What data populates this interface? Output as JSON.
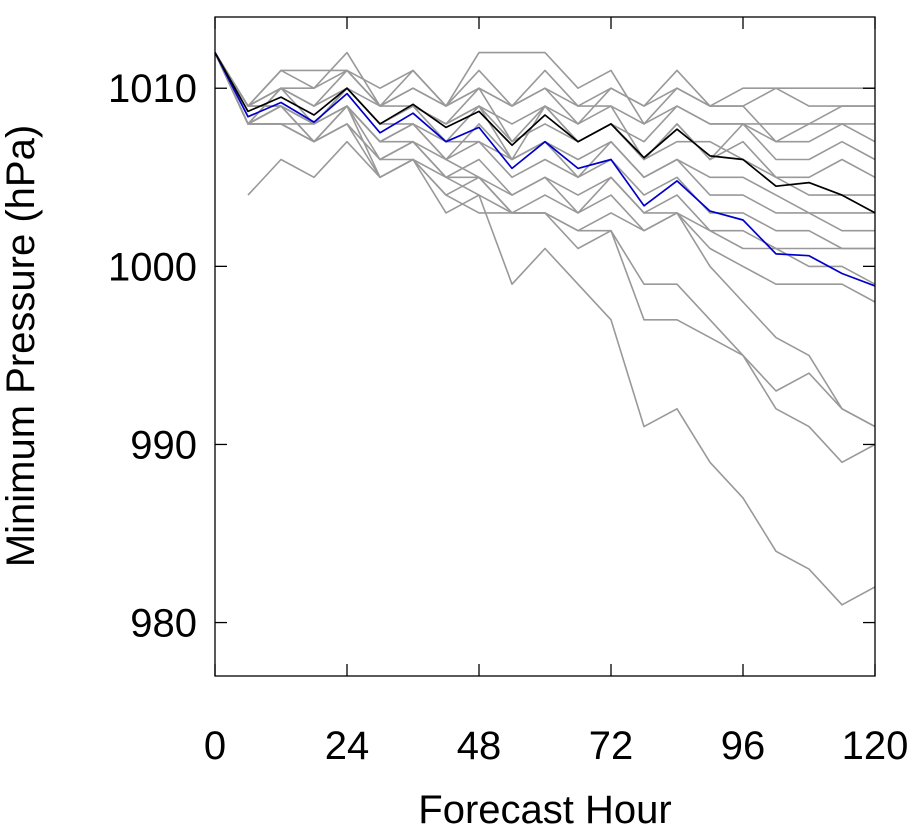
{
  "chart_data": {
    "type": "line",
    "title": "",
    "xlabel": "Forecast Hour",
    "ylabel": "Minimum Pressure (hPa)",
    "xlim": [
      0,
      120
    ],
    "ylim": [
      977,
      1014
    ],
    "xticks": [
      0,
      24,
      48,
      72,
      96,
      120
    ],
    "xtick_labels": [
      "0",
      "24",
      "48",
      "72",
      "96",
      "120"
    ],
    "yticks": [
      980,
      990,
      1000,
      1010
    ],
    "ytick_labels": [
      "980",
      "990",
      "1000",
      "1010"
    ],
    "grid": false,
    "legend": "none",
    "x": [
      0,
      6,
      12,
      18,
      24,
      30,
      36,
      42,
      48,
      54,
      60,
      66,
      72,
      78,
      84,
      90,
      96,
      102,
      108,
      114,
      120
    ],
    "colors": {
      "members": "#999999",
      "mean": "#000000",
      "blue": "#0000cc"
    },
    "series": [
      {
        "style": "mean",
        "values": [
          1012,
          1008.7,
          1009.5,
          1008.5,
          1010,
          1008,
          1009.1,
          1007.8,
          1008.7,
          1006.8,
          1008.5,
          1007.0,
          1008.0,
          1006.1,
          1007.7,
          1006.2,
          1006.0,
          1004.5,
          1004.7,
          1004.0,
          1003.0
        ]
      },
      {
        "style": "blue",
        "values": [
          1012,
          1008.4,
          1009.2,
          1008.1,
          1009.7,
          1007.5,
          1008.6,
          1007.0,
          1007.8,
          1005.5,
          1007.0,
          1005.5,
          1006.0,
          1003.4,
          1004.8,
          1003.1,
          1002.6,
          1000.7,
          1000.6,
          999.6,
          998.9
        ]
      },
      {
        "style": "member",
        "values": [
          1012,
          1009,
          1011,
          1010,
          1011,
          1009,
          1011,
          1009,
          1010,
          1009,
          1010,
          1009,
          1010,
          1009,
          1010,
          1009,
          1009,
          1010,
          1009,
          1009,
          1009
        ]
      },
      {
        "style": "member",
        "values": [
          1012,
          1009,
          1010,
          1010,
          1012,
          1009,
          1010,
          1009,
          1012,
          1012,
          1012,
          1010,
          1011,
          1008,
          1010,
          1009,
          1010,
          1010,
          1010,
          1010,
          1010
        ]
      },
      {
        "style": "member",
        "values": [
          1012,
          1008,
          1010,
          1009,
          1011,
          1009,
          1010,
          1009,
          1011,
          1009,
          1011,
          1009,
          1009,
          1008,
          1009,
          1008,
          1008,
          1008,
          1008,
          1008,
          1008
        ]
      },
      {
        "style": "member",
        "values": [
          1012,
          1009,
          1011,
          1011,
          1011,
          1010,
          1011,
          1009,
          1010,
          1009,
          1010,
          1008,
          1010,
          1009,
          1011,
          1009,
          1009,
          1007,
          1008,
          1009,
          1009
        ]
      },
      {
        "style": "member",
        "values": [
          1012,
          1009,
          1010,
          1009,
          1010,
          1009,
          1009,
          1008,
          1009,
          1008,
          1009,
          1007,
          1008,
          1007,
          1009,
          1008,
          1008,
          1007,
          1007,
          1008,
          1007
        ]
      },
      {
        "style": "member",
        "values": [
          1012,
          1008,
          1010,
          1009,
          1010,
          1008,
          1009,
          1008,
          1009,
          1007,
          1009,
          1008,
          1009,
          1006,
          1008,
          1006,
          1008,
          1006,
          1006,
          1007,
          1006
        ]
      },
      {
        "style": "member",
        "values": [
          1012,
          1009,
          1009,
          1008,
          1010,
          1008,
          1009,
          1007,
          1009,
          1006,
          1009,
          1007,
          1008,
          1006,
          1008,
          1006,
          1007,
          1005,
          1005,
          1006,
          1005
        ]
      },
      {
        "style": "member",
        "values": [
          1012,
          1009,
          1010,
          1008,
          1010,
          1008,
          1009,
          1008,
          1010,
          1007,
          1008,
          1007,
          1008,
          1006,
          1007,
          1007,
          1006,
          1005,
          1004,
          1004,
          1004
        ]
      },
      {
        "style": "member",
        "values": [
          1012,
          1008,
          1009,
          1008,
          1009,
          1007,
          1008,
          1006,
          1008,
          1006,
          1007,
          1006,
          1007,
          1005,
          1006,
          1005,
          1005,
          1004,
          1003,
          1003,
          1003
        ]
      },
      {
        "style": "member",
        "values": [
          1012,
          1008,
          1009,
          1008,
          1010,
          1008,
          1008,
          1007,
          1007,
          1006,
          1007,
          1005,
          1007,
          1005,
          1006,
          1004,
          1004,
          1003,
          1003,
          1002,
          1002
        ]
      },
      {
        "style": "member",
        "values": [
          1012,
          1009,
          1009,
          1007,
          1009,
          1007,
          1008,
          1006,
          1007,
          1005,
          1006,
          1005,
          1006,
          1004,
          1005,
          1003,
          1003,
          1002,
          1002,
          1001,
          1001
        ]
      },
      {
        "style": "member",
        "values": [
          1012,
          1008,
          1009,
          1007,
          1009,
          1006,
          1007,
          1005,
          1006,
          1004,
          1005,
          1004,
          1005,
          1003,
          1004,
          1002,
          1001,
          1001,
          1000,
          1000,
          999
        ]
      },
      {
        "style": "member",
        "values": [
          1012,
          1008,
          1008,
          1007,
          1008,
          1006,
          1007,
          1005,
          1005,
          1004,
          1005,
          1003,
          1005,
          1003,
          1003,
          1001,
          1000,
          999,
          999,
          999,
          998
        ]
      },
      {
        "style": "member",
        "values": [
          1012,
          1008,
          1008,
          1007,
          1008,
          1005,
          1006,
          1004,
          1005,
          1003,
          1004,
          1003,
          1004,
          1002,
          1003,
          1000,
          998,
          996,
          995,
          992,
          991
        ]
      },
      {
        "style": "member",
        "values": [
          1012,
          1008,
          1008,
          1008,
          1009,
          1005,
          1006,
          1003,
          1004,
          1003,
          1003,
          1002,
          1002,
          999,
          999,
          997,
          995,
          993,
          994,
          992,
          991
        ]
      },
      {
        "style": "member",
        "values": [
          1012,
          1008,
          1008,
          1007,
          1008,
          1006,
          1006,
          1005,
          1004,
          999,
          1001,
          999,
          997,
          991,
          992,
          989,
          987,
          984,
          983,
          981,
          982
        ]
      },
      {
        "style": "member",
        "values": [
          1012,
          1008,
          1009,
          1008,
          1009,
          1007,
          1007,
          1006,
          1005,
          1003,
          1003,
          1001,
          1002,
          997,
          997,
          996,
          995,
          992,
          991,
          989,
          990
        ]
      },
      {
        "style": "member",
        "values": [
          null,
          1004,
          1006,
          1005,
          1007,
          1005,
          1006,
          1004,
          1003,
          1003,
          1003,
          1002,
          1003,
          1002,
          1003,
          1002,
          1002,
          1001,
          1001,
          1001,
          1001
        ]
      }
    ]
  }
}
